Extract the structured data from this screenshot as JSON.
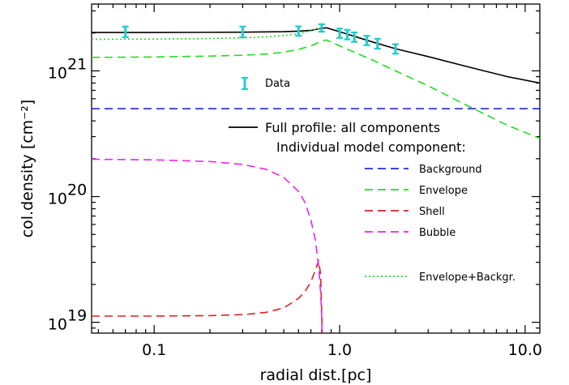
{
  "chart_data": {
    "type": "line",
    "xlabel": "radial dist.[pc]",
    "ylabel": "col.density [cm⁻²]",
    "x_scale": "log",
    "y_scale": "log",
    "xlim": [
      0.046,
      12
    ],
    "ylim": [
      8.2e+18,
      3.4e+21
    ],
    "x_ticks": [
      {
        "value": 0.1,
        "label": "0.1"
      },
      {
        "value": 1.0,
        "label": "1.0"
      },
      {
        "value": 10.0,
        "label": "10.0"
      }
    ],
    "y_ticks": [
      {
        "value": 1e+19,
        "mantissa": "10",
        "exponent": "19"
      },
      {
        "value": 1e+20,
        "mantissa": "10",
        "exponent": "20"
      },
      {
        "value": 1e+21,
        "mantissa": "10",
        "exponent": "21"
      }
    ],
    "legend_items": [
      {
        "label": "Data",
        "style": "errorbar"
      },
      {
        "label": "Full profile: all components",
        "style": "solid",
        "color": "#000000"
      },
      {
        "label": "Individual model component:",
        "style": "none"
      },
      {
        "label": "Background",
        "style": "dashed",
        "color": "#1f2fd6"
      },
      {
        "label": "Envelope",
        "style": "dashed",
        "color": "#22dd22"
      },
      {
        "label": "Shell",
        "style": "dashed",
        "color": "#dd2222"
      },
      {
        "label": "Bubble",
        "style": "dashed",
        "color": "#ee22ee"
      },
      {
        "label": "Envelope+Backgr.",
        "style": "dotted",
        "color": "#22dd22"
      }
    ],
    "series": [
      {
        "name": "Data",
        "kind": "errorbar",
        "color": "#22cccc",
        "x": [
          0.07,
          0.3,
          0.6,
          0.8,
          1.0,
          1.1,
          1.2,
          1.4,
          1.6,
          2.0
        ],
        "y": [
          2.05e+21,
          2.05e+21,
          2.08e+21,
          2.2e+21,
          2e+21,
          1.95e+21,
          1.85e+21,
          1.75e+21,
          1.65e+21,
          1.5e+21
        ],
        "yerr_low": [
          1.85e+21,
          1.85e+21,
          1.9e+21,
          2.05e+21,
          1.83e+21,
          1.78e+21,
          1.7e+21,
          1.6e+21,
          1.5e+21,
          1.37e+21
        ],
        "yerr_high": [
          2.25e+21,
          2.25e+21,
          2.26e+21,
          2.35e+21,
          2.17e+21,
          2.12e+21,
          2.02e+21,
          1.9e+21,
          1.8e+21,
          1.63e+21
        ]
      },
      {
        "name": "Full profile: all components",
        "color": "#000000",
        "dash": "solid",
        "x": [
          0.046,
          0.1,
          0.3,
          0.5,
          0.6,
          0.7,
          0.8,
          0.85,
          1.0,
          1.5,
          2.0,
          3.0,
          5.0,
          8.0,
          12.0
        ],
        "y": [
          2.02e+21,
          2.02e+21,
          2.03e+21,
          2.05e+21,
          2.07e+21,
          2.1e+21,
          2.18e+21,
          2.2e+21,
          2.05e+21,
          1.7e+21,
          1.5e+21,
          1.3e+21,
          1.07e+21,
          9e+20,
          8e+20
        ]
      },
      {
        "name": "Background",
        "color": "#1f2fd6",
        "dash": "dashed",
        "x": [
          0.046,
          12.0
        ],
        "y": [
          5e+20,
          5e+20
        ]
      },
      {
        "name": "Envelope",
        "color": "#22dd22",
        "dash": "dashed",
        "x": [
          0.046,
          0.1,
          0.2,
          0.3,
          0.4,
          0.5,
          0.6,
          0.7,
          0.8,
          0.85,
          1.0,
          1.5,
          2.0,
          3.0,
          5.0,
          8.0,
          12.0
        ],
        "y": [
          1.28e+21,
          1.29e+21,
          1.31e+21,
          1.33e+21,
          1.36e+21,
          1.41e+21,
          1.48e+21,
          1.58e+21,
          1.72e+21,
          1.76e+21,
          1.58e+21,
          1.22e+21,
          1e+21,
          7.6e+20,
          5.2e+20,
          3.7e+20,
          2.9e+20
        ]
      },
      {
        "name": "Shell",
        "color": "#dd2222",
        "dash": "dashed",
        "x": [
          0.046,
          0.1,
          0.2,
          0.3,
          0.4,
          0.5,
          0.6,
          0.65,
          0.7,
          0.74,
          0.77,
          0.79,
          0.8,
          0.805
        ],
        "y": [
          1.12e+19,
          1.12e+19,
          1.13e+19,
          1.15e+19,
          1.2e+19,
          1.3e+19,
          1.55e+19,
          1.75e+19,
          2.1e+19,
          2.6e+19,
          3.1e+19,
          2.4e+19,
          1.2e+19,
          8.2e+18
        ]
      },
      {
        "name": "Bubble",
        "color": "#ee22ee",
        "dash": "dashed",
        "x": [
          0.046,
          0.1,
          0.2,
          0.3,
          0.4,
          0.5,
          0.6,
          0.65,
          0.7,
          0.74,
          0.77,
          0.79,
          0.8,
          0.805
        ],
        "y": [
          1.98e+20,
          1.96e+20,
          1.9e+20,
          1.8e+20,
          1.65e+20,
          1.42e+20,
          1.1e+20,
          9e+19,
          6.5e+19,
          4.5e+19,
          2.8e+19,
          1.7e+19,
          1.1e+19,
          8.2e+18
        ]
      },
      {
        "name": "Envelope+Backgr.",
        "color": "#22dd22",
        "dash": "dotted",
        "x": [
          0.046,
          0.1,
          0.2,
          0.3,
          0.4,
          0.5,
          0.6,
          0.7,
          0.8
        ],
        "y": [
          1.78e+21,
          1.79e+21,
          1.81e+21,
          1.83e+21,
          1.86e+21,
          1.91e+21,
          1.98e+21,
          2.08e+21,
          2.2e+21
        ]
      }
    ]
  }
}
